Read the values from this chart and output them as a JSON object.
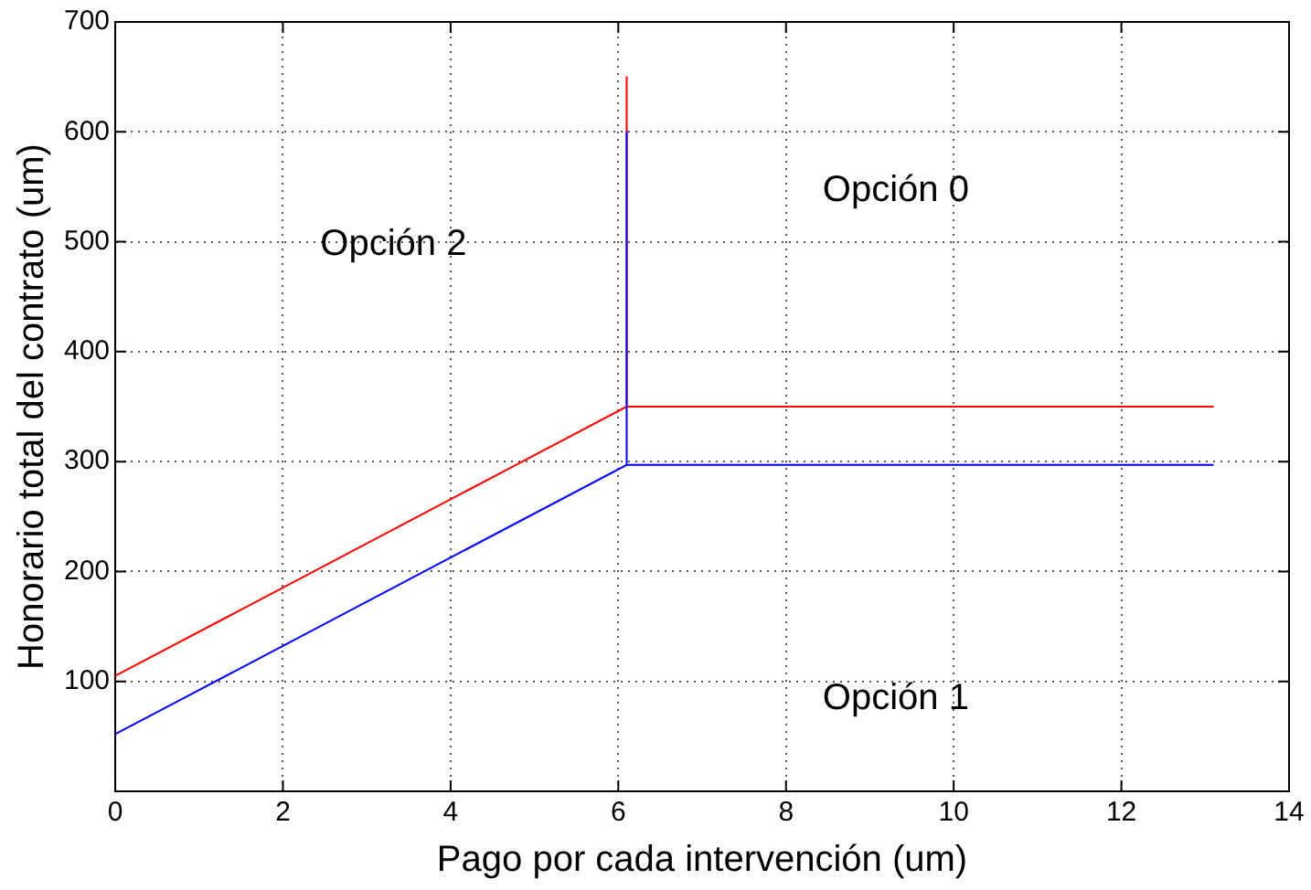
{
  "chart_data": {
    "type": "line",
    "xlabel": "Pago por cada intervención (um)",
    "ylabel": "Honorario total del contrato (um)",
    "series": [
      {
        "color": "#ff0000",
        "x": [
          0,
          6.1,
          6.1,
          6.1,
          13.1
        ],
        "values": [
          105,
          350,
          650,
          350,
          350
        ]
      },
      {
        "color": "#0000ff",
        "x": [
          0,
          6.1,
          6.1,
          6.1,
          13.1
        ],
        "values": [
          52,
          297,
          600,
          297,
          297
        ]
      }
    ],
    "xlim": [
      0,
      14
    ],
    "xticks": [
      0,
      2,
      4,
      6,
      8,
      10,
      12,
      14
    ],
    "ylim": [
      0,
      700
    ],
    "yticks": [
      100,
      200,
      300,
      400,
      500,
      600,
      700
    ],
    "grid": true,
    "legend": false,
    "marker": "none",
    "line_style": "solid",
    "annotations": [
      "Opción 0",
      "Opción 2",
      "Opción 1"
    ]
  }
}
